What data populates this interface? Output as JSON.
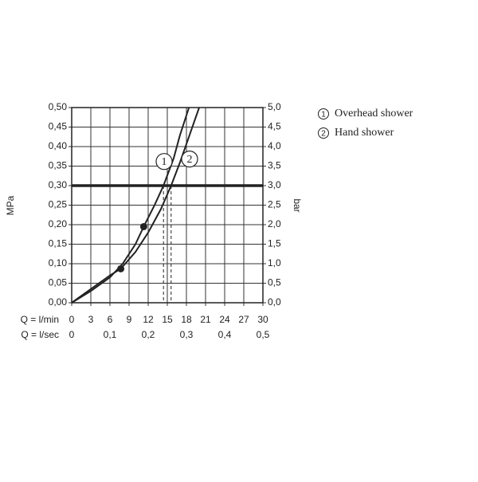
{
  "chart_data": {
    "type": "line",
    "x_labels": [
      "Q = l/min",
      "Q = l/sec"
    ],
    "ylabel": "MPa",
    "y2label": "bar",
    "series": [
      {
        "name": "Overhead shower",
        "label": "1",
        "color": "#222222",
        "x": [
          0,
          3,
          6,
          8,
          10,
          11.3,
          13,
          14.4,
          16,
          17,
          18.4
        ],
        "values": [
          0,
          0.03,
          0.065,
          0.1,
          0.15,
          0.195,
          0.25,
          0.3,
          0.37,
          0.43,
          0.5
        ],
        "dot": 5
      },
      {
        "name": "Hand shower",
        "label": "2",
        "color": "#222222",
        "x": [
          0,
          3,
          6,
          7.7,
          10,
          12,
          14,
          15.6,
          17,
          18.5,
          20
        ],
        "values": [
          0,
          0.035,
          0.07,
          0.087,
          0.13,
          0.18,
          0.24,
          0.3,
          0.36,
          0.43,
          0.5
        ],
        "dot": 3
      }
    ],
    "hline": 0.3,
    "xlim": [
      0,
      30
    ],
    "xticks": [
      0,
      3,
      6,
      9,
      12,
      15,
      18,
      21,
      24,
      27,
      30
    ],
    "x2lim": [
      0,
      0.5
    ],
    "x2ticks": [
      0,
      {
        "value": 0.1,
        "label": "0,1"
      },
      {
        "value": 0.2,
        "label": "0,2"
      },
      {
        "value": 0.3,
        "label": "0,3"
      },
      {
        "value": 0.4,
        "label": "0,4"
      },
      {
        "value": 0.5,
        "label": "0,5"
      }
    ],
    "ylim": [
      0,
      0.5
    ],
    "yticks": [
      {
        "value": 0,
        "label": "0,00"
      },
      {
        "value": 0.05,
        "label": "0,05"
      },
      {
        "value": 0.1,
        "label": "0,10"
      },
      {
        "value": 0.15,
        "label": "0,15"
      },
      {
        "value": 0.2,
        "label": "0,20"
      },
      {
        "value": 0.25,
        "label": "0,25"
      },
      {
        "value": 0.3,
        "label": "0,30"
      },
      {
        "value": 0.35,
        "label": "0,35"
      },
      {
        "value": 0.4,
        "label": "0,40"
      },
      {
        "value": 0.45,
        "label": "0,45"
      },
      {
        "value": 0.5,
        "label": "0,50"
      }
    ],
    "y2lim": [
      0,
      5
    ],
    "y2ticks": [
      {
        "value": 0,
        "label": "0,0"
      },
      {
        "value": 0.5,
        "label": "0,5"
      },
      {
        "value": 1,
        "label": "1,0"
      },
      {
        "value": 1.5,
        "label": "1,5"
      },
      {
        "value": 2,
        "label": "2,0"
      },
      {
        "value": 2.5,
        "label": "2,5"
      },
      {
        "value": 3,
        "label": "3,0"
      },
      {
        "value": 3.5,
        "label": "3,5"
      },
      {
        "value": 4,
        "label": "4,0"
      },
      {
        "value": 4.5,
        "label": "4,5"
      },
      {
        "value": 5,
        "label": "5,0"
      }
    ],
    "grid": true
  }
}
